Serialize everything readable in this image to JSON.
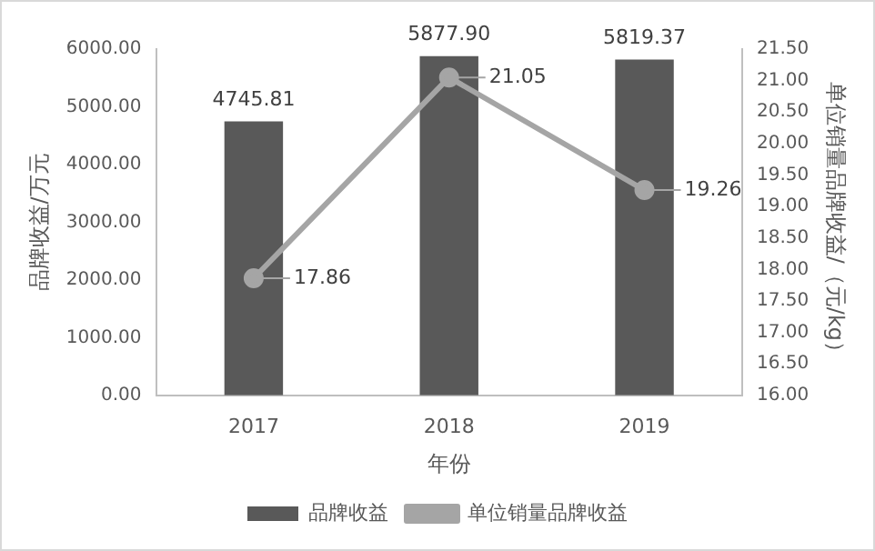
{
  "chart_data": {
    "type": "bar",
    "xlabel": "年份",
    "ylabel": "品牌收益/万元",
    "y2label": "单位销量品牌收益/（元/kg）",
    "categories": [
      "2017",
      "2018",
      "2019"
    ],
    "series": [
      {
        "name": "品牌收益",
        "color": "#595959",
        "values": [
          4745.81,
          5877.9,
          5819.37
        ],
        "value_labels": [
          "4745.81",
          "5877.90",
          "5819.37"
        ]
      },
      {
        "name": "单位销量品牌收益",
        "type": "line",
        "axis": "y2",
        "color": "#a5a5a5",
        "values": [
          17.86,
          21.05,
          19.26
        ],
        "value_labels": [
          "17.86",
          "21.05",
          "19.26"
        ]
      }
    ],
    "ylim": [
      0,
      6000
    ],
    "yticks": [
      {
        "value": 0,
        "label": "0.00"
      },
      {
        "value": 1000,
        "label": "1000.00"
      },
      {
        "value": 2000,
        "label": "2000.00"
      },
      {
        "value": 3000,
        "label": "3000.00"
      },
      {
        "value": 4000,
        "label": "4000.00"
      },
      {
        "value": 5000,
        "label": "5000.00"
      },
      {
        "value": 6000,
        "label": "6000.00"
      }
    ],
    "y2lim": [
      16,
      21.5
    ],
    "y2ticks": [
      {
        "value": 16,
        "label": "16.00"
      },
      {
        "value": 16.5,
        "label": "16.50"
      },
      {
        "value": 17,
        "label": "17.00"
      },
      {
        "value": 17.5,
        "label": "17.50"
      },
      {
        "value": 18,
        "label": "18.00"
      },
      {
        "value": 18.5,
        "label": "18.50"
      },
      {
        "value": 19,
        "label": "19.00"
      },
      {
        "value": 19.5,
        "label": "19.50"
      },
      {
        "value": 20,
        "label": "20.00"
      },
      {
        "value": 20.5,
        "label": "20.50"
      },
      {
        "value": 21,
        "label": "21.00"
      },
      {
        "value": 21.5,
        "label": "21.50"
      }
    ],
    "grid": false,
    "legend": "bottom",
    "marker": "circle",
    "line_style": "solid"
  }
}
